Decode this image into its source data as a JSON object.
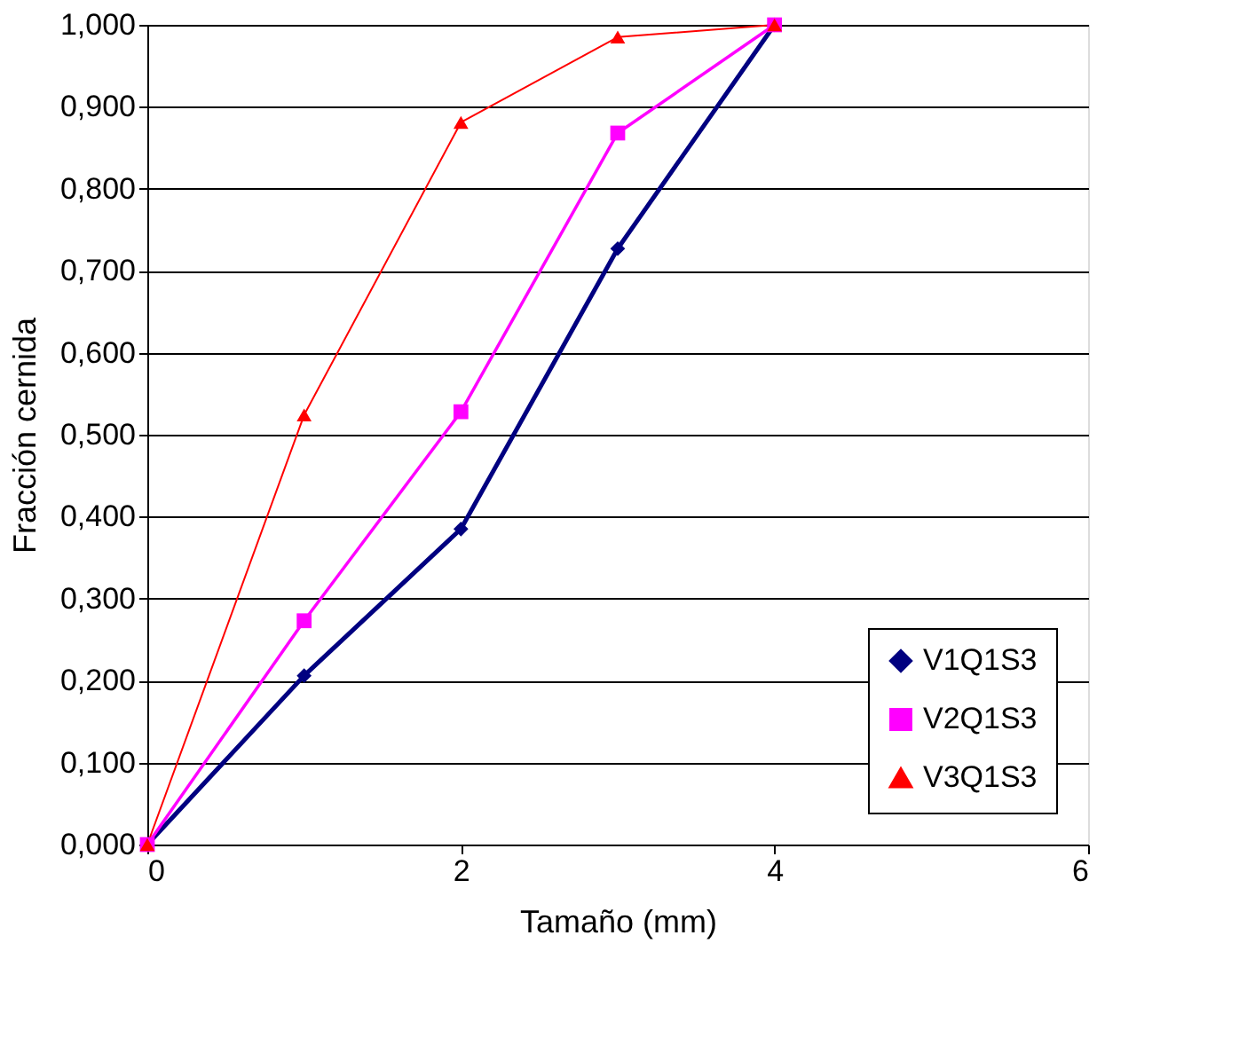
{
  "chart_data": {
    "type": "line",
    "xlabel": "Tamaño (mm)",
    "ylabel": "Fracción cernida",
    "x": [
      0,
      1,
      2,
      3,
      4
    ],
    "series": [
      {
        "name": "V1Q1S3",
        "color": "#000080",
        "marker": "diamond",
        "values": [
          0,
          0.206,
          0.385,
          0.727,
          1
        ]
      },
      {
        "name": "V2Q1S3",
        "color": "#ff00ff",
        "marker": "square",
        "values": [
          0,
          0.273,
          0.528,
          0.868,
          1
        ]
      },
      {
        "name": "V3Q1S3",
        "color": "#ff0000",
        "marker": "triangle",
        "values": [
          0,
          0.524,
          0.881,
          0.985,
          1
        ]
      }
    ],
    "xlim": [
      0,
      6
    ],
    "xticks": [
      0,
      2,
      4,
      6
    ],
    "ylim": [
      0,
      1
    ],
    "yticks": [
      {
        "value": 0,
        "label": "0,000"
      },
      {
        "value": 0.1,
        "label": "0,100"
      },
      {
        "value": 0.2,
        "label": "0,200"
      },
      {
        "value": 0.3,
        "label": "0,300"
      },
      {
        "value": 0.4,
        "label": "0,400"
      },
      {
        "value": 0.5,
        "label": "0,500"
      },
      {
        "value": 0.6,
        "label": "0,600"
      },
      {
        "value": 0.7,
        "label": "0,700"
      },
      {
        "value": 0.8,
        "label": "0,800"
      },
      {
        "value": 0.9,
        "label": "0,900"
      },
      {
        "value": 1,
        "label": "1,000"
      }
    ],
    "grid": "y",
    "legend": "bottom right",
    "line_style": "solid"
  }
}
